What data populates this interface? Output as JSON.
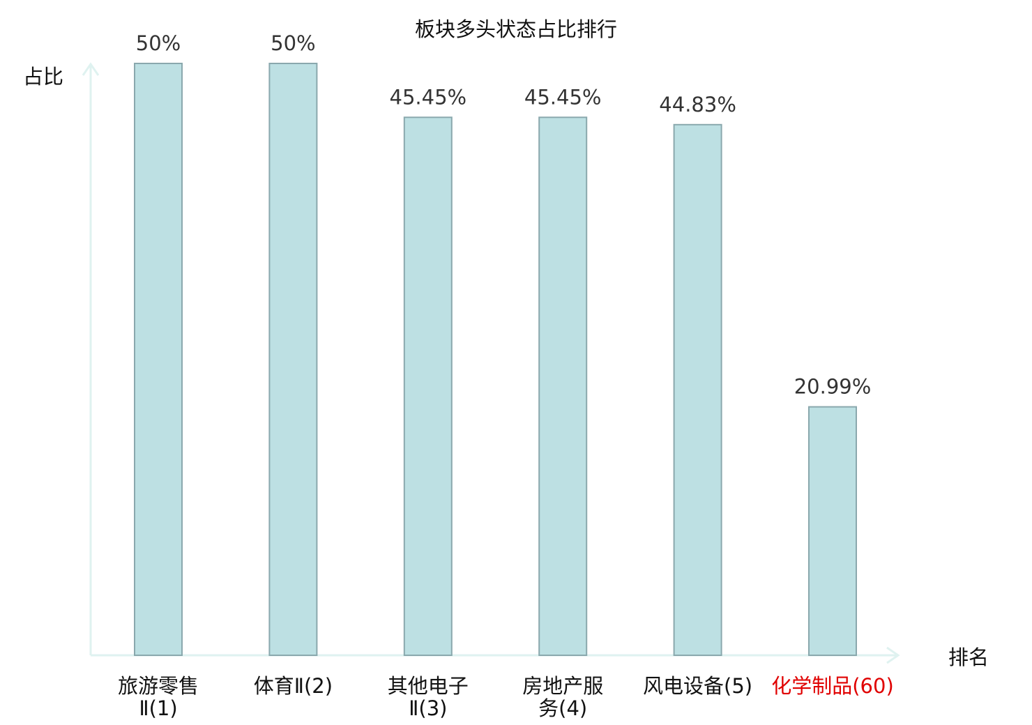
{
  "chart_data": {
    "type": "bar",
    "title": "板块多头状态占比排行",
    "ylabel": "占比",
    "xlabel": "排名",
    "ylim": [
      0,
      50
    ],
    "grid": false,
    "legend": "none",
    "categories": [
      [
        "旅游零售",
        "Ⅱ(1)"
      ],
      [
        "体育Ⅱ(2)"
      ],
      [
        "其他电子",
        "Ⅱ(3)"
      ],
      [
        "房地产服",
        "务(4)"
      ],
      [
        "风电设备(5)"
      ],
      [
        "化学制品(60)"
      ]
    ],
    "values": [
      50,
      50,
      45.45,
      45.45,
      44.83,
      20.99
    ],
    "value_labels": [
      "50%",
      "50%",
      "45.45%",
      "45.45%",
      "44.83%",
      "20.99%"
    ],
    "highlight_index": 5,
    "colors": {
      "bar_fill": "#bde0e3",
      "bar_stroke": "#8aa8ad",
      "axis": "#dff2f0",
      "label_text": "#333333",
      "highlight_text": "#e00000",
      "title_text": "#111111"
    }
  }
}
